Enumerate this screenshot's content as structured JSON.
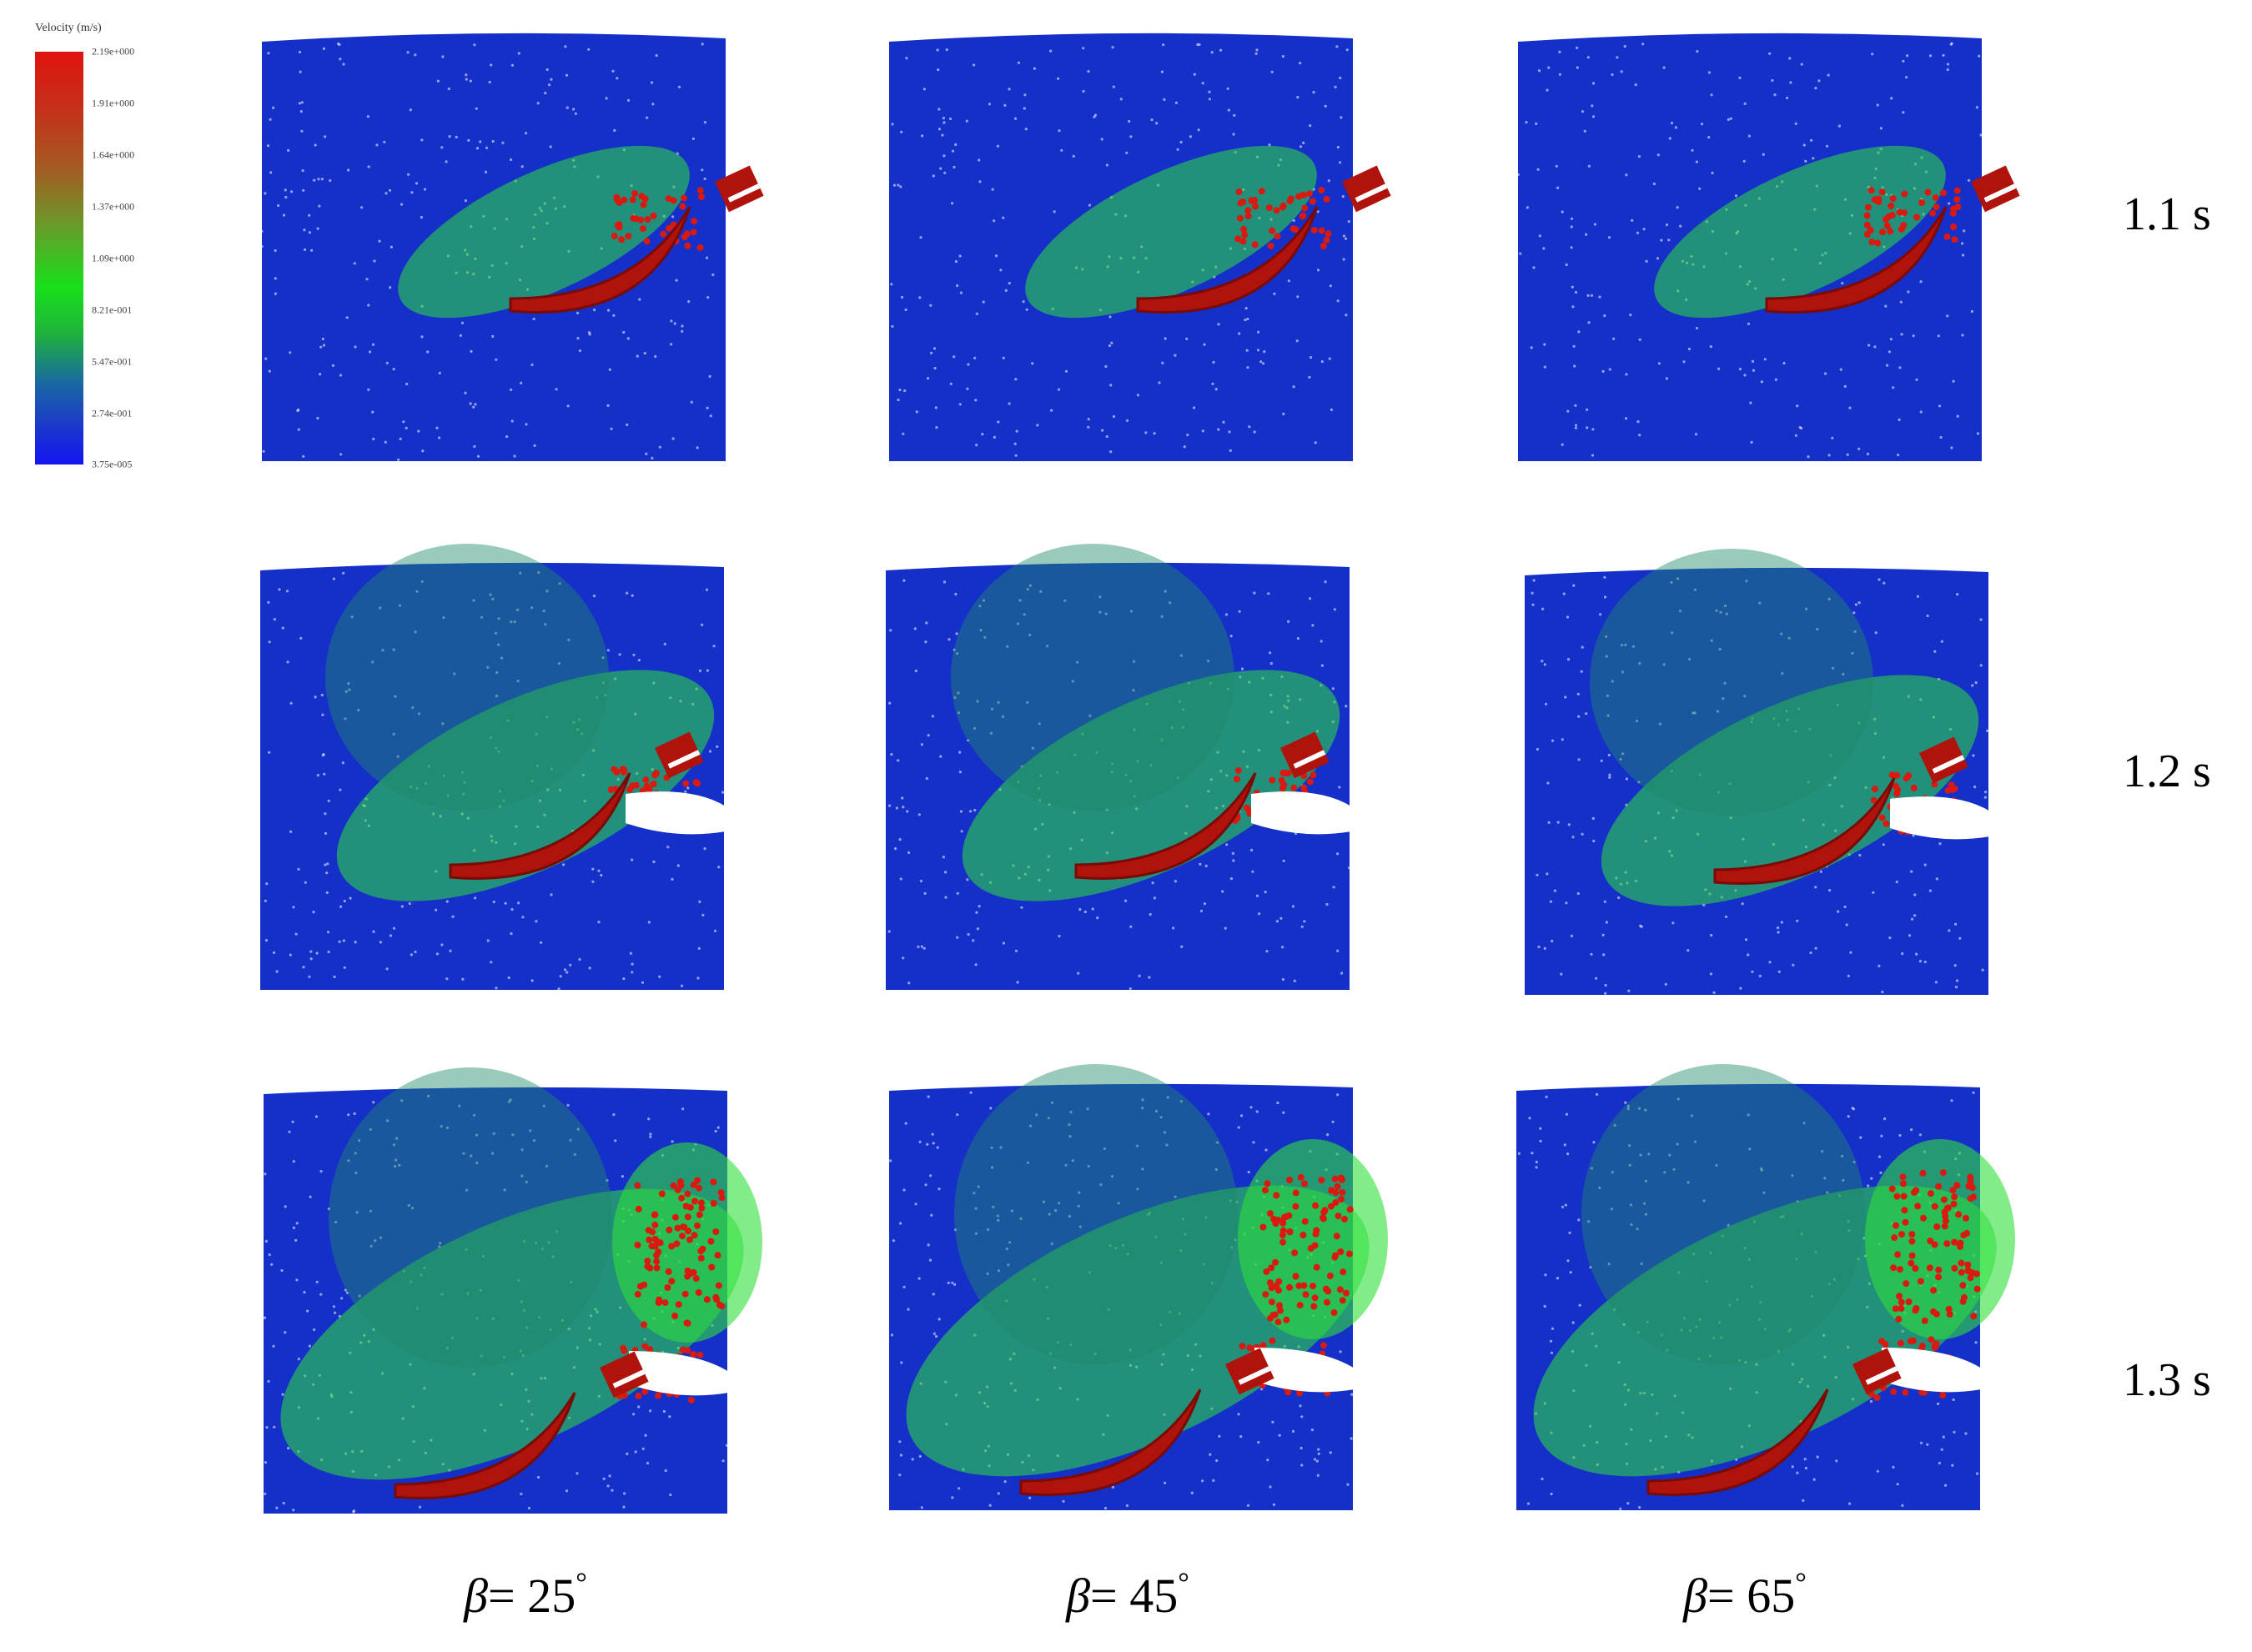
{
  "legend": {
    "title": "Velocity (m/s)",
    "ticks": [
      "2.19e+000",
      "1.91e+000",
      "1.64e+000",
      "1.37e+000",
      "1.09e+000",
      "8.21e-001",
      "5.47e-001",
      "2.74e-001",
      "3.75e-005"
    ],
    "colors": [
      "#e0140f",
      "#a65a22",
      "#18e01a",
      "#1a3cc8",
      "#1414f0"
    ]
  },
  "rows": [
    {
      "time": "1.1 s"
    },
    {
      "time": "1.2 s"
    },
    {
      "time": "1.3 s"
    }
  ],
  "columns": [
    {
      "beta_symbol": "β",
      "beta_value": "= 25",
      "degree": "°"
    },
    {
      "beta_symbol": "β",
      "beta_value": "= 45",
      "degree": "°"
    },
    {
      "beta_symbol": "β",
      "beta_value": "= 65",
      "degree": "°"
    }
  ],
  "colors": {
    "soil_blue": "#1530c8",
    "soil_green": "#2ee03a",
    "soil_red": "#d81a10",
    "plough_red": "#b0120c"
  }
}
